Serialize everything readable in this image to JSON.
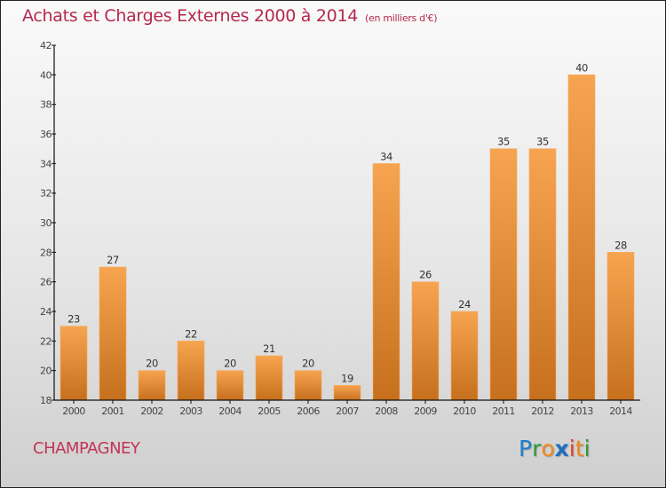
{
  "header": {
    "title": "Achats et Charges Externes 2000 à 2014",
    "unit": "(en milliers d'€)"
  },
  "footer": {
    "town": "CHAMPAGNEY",
    "logo_letters": [
      {
        "ch": "P",
        "color": "#1e7fd0"
      },
      {
        "ch": "r",
        "color": "#2e9a3a"
      },
      {
        "ch": "o",
        "color": "#f08a1a"
      },
      {
        "ch": "x",
        "color": "#1e6fc0"
      },
      {
        "ch": "i",
        "color": "#e0402a"
      },
      {
        "ch": "t",
        "color": "#f08a1a"
      },
      {
        "ch": "i",
        "color": "#2e9a3a"
      }
    ]
  },
  "colors": {
    "bar_top": "#f7a450",
    "bar_bottom": "#c6701e",
    "title": "#b5284e",
    "axis": "#111111",
    "label": "#333333"
  },
  "chart_data": {
    "type": "bar",
    "title": "Achats et Charges Externes 2000 à 2014",
    "subtitle": "(en milliers d'€)",
    "xlabel": "",
    "ylabel": "",
    "categories": [
      "2000",
      "2001",
      "2002",
      "2003",
      "2004",
      "2005",
      "2006",
      "2007",
      "2008",
      "2009",
      "2010",
      "2011",
      "2012",
      "2013",
      "2014"
    ],
    "values": [
      23,
      27,
      20,
      22,
      20,
      21,
      20,
      19,
      34,
      26,
      24,
      35,
      35,
      40,
      28
    ],
    "ylim": [
      18,
      42
    ],
    "yticks": [
      18,
      20,
      22,
      24,
      26,
      28,
      30,
      32,
      34,
      36,
      38,
      40,
      42
    ],
    "grid": false,
    "legend": "none",
    "data_labels": true
  }
}
